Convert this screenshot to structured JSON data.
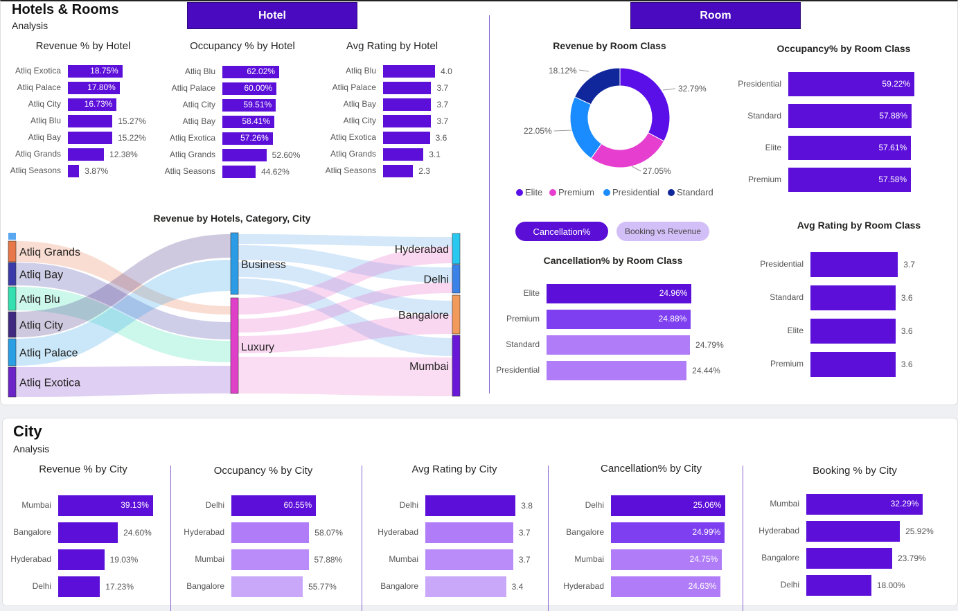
{
  "colors": {
    "accent": "#5b0fd6",
    "tab": "#4a0bc0",
    "bar_dark": "#5c0fd9",
    "bar_mid": "#7e3ff0",
    "bar_light": "#b07cf8",
    "bar_lighter": "#c9a8fa"
  },
  "header": {
    "title": "Hotels & Rooms",
    "subtitle": "Analysis",
    "tab_hotel": "Hotel",
    "tab_room": "Room"
  },
  "city_header": {
    "title": "City",
    "subtitle": "Analysis"
  },
  "buttons": {
    "cancellation": "Cancellation%",
    "booking_vs_revenue": "Booking vs Revenue"
  },
  "chart_data": [
    {
      "id": "rev_hotel",
      "type": "bar",
      "title": "Revenue % by Hotel",
      "categories": [
        "Atliq Exotica",
        "Atliq Palace",
        "Atliq City",
        "Atliq Blu",
        "Atliq Bay",
        "Atliq Grands",
        "Atliq Seasons"
      ],
      "values": [
        18.75,
        17.8,
        16.73,
        15.27,
        15.22,
        12.38,
        3.87
      ],
      "labels": [
        "18.75%",
        "17.80%",
        "16.73%",
        "15.27%",
        "15.22%",
        "12.38%",
        "3.87%"
      ]
    },
    {
      "id": "occ_hotel",
      "type": "bar",
      "title": "Occupancy % by Hotel",
      "categories": [
        "Atliq Blu",
        "Atliq Palace",
        "Atliq City",
        "Atliq Bay",
        "Atliq Exotica",
        "Atliq Grands",
        "Atliq Seasons"
      ],
      "values": [
        62.02,
        60.0,
        59.51,
        58.41,
        57.26,
        52.6,
        44.62
      ],
      "labels": [
        "62.02%",
        "60.00%",
        "59.51%",
        "58.41%",
        "57.26%",
        "52.60%",
        "44.62%"
      ]
    },
    {
      "id": "rat_hotel",
      "type": "bar",
      "title": "Avg Rating by Hotel",
      "categories": [
        "Atliq Blu",
        "Atliq Palace",
        "Atliq Bay",
        "Atliq City",
        "Atliq Exotica",
        "Atliq Grands",
        "Atliq Seasons"
      ],
      "values": [
        4.0,
        3.7,
        3.7,
        3.7,
        3.6,
        3.1,
        2.3
      ],
      "labels": [
        "4.0",
        "3.7",
        "3.7",
        "3.7",
        "3.6",
        "3.1",
        "2.3"
      ]
    },
    {
      "id": "rev_room",
      "type": "pie",
      "title": "Revenue by Room Class",
      "categories": [
        "Elite",
        "Premium",
        "Presidential",
        "Standard"
      ],
      "values": [
        32.79,
        27.05,
        22.05,
        18.12
      ],
      "labels": [
        "32.79%",
        "27.05%",
        "22.05%",
        "18.12%"
      ],
      "colors": [
        "#5b0fe8",
        "#e63ecf",
        "#1a8cff",
        "#0f279a"
      ]
    },
    {
      "id": "occ_room",
      "type": "bar",
      "title": "Occupancy% by Room Class",
      "categories": [
        "Presidential",
        "Standard",
        "Elite",
        "Premium"
      ],
      "values": [
        59.22,
        57.88,
        57.61,
        57.58
      ],
      "labels": [
        "59.22%",
        "57.88%",
        "57.61%",
        "57.58%"
      ]
    },
    {
      "id": "canc_room",
      "type": "bar",
      "title": "Cancellation% by Room Class",
      "categories": [
        "Elite",
        "Premium",
        "Standard",
        "Presidential"
      ],
      "values": [
        24.96,
        24.88,
        24.79,
        24.44
      ],
      "labels": [
        "24.96%",
        "24.88%",
        "24.79%",
        "24.44%"
      ]
    },
    {
      "id": "rat_room",
      "type": "bar",
      "title": "Avg Rating by Room Class",
      "categories": [
        "Presidential",
        "Standard",
        "Elite",
        "Premium"
      ],
      "values": [
        3.7,
        3.6,
        3.6,
        3.6
      ],
      "labels": [
        "3.7",
        "3.6",
        "3.6",
        "3.6"
      ]
    },
    {
      "id": "rev_city",
      "type": "bar",
      "title": "Revenue % by City",
      "categories": [
        "Mumbai",
        "Bangalore",
        "Hyderabad",
        "Delhi"
      ],
      "values": [
        39.13,
        24.6,
        19.03,
        17.23
      ],
      "labels": [
        "39.13%",
        "24.60%",
        "19.03%",
        "17.23%"
      ]
    },
    {
      "id": "occ_city",
      "type": "bar",
      "title": "Occupancy % by City",
      "categories": [
        "Delhi",
        "Hyderabad",
        "Mumbai",
        "Bangalore"
      ],
      "values": [
        60.55,
        58.07,
        57.88,
        55.77
      ],
      "labels": [
        "60.55%",
        "58.07%",
        "57.88%",
        "55.77%"
      ]
    },
    {
      "id": "rat_city",
      "type": "bar",
      "title": "Avg Rating by City",
      "categories": [
        "Delhi",
        "Hyderabad",
        "Mumbai",
        "Bangalore"
      ],
      "values": [
        3.8,
        3.7,
        3.7,
        3.4
      ],
      "labels": [
        "3.8",
        "3.7",
        "3.7",
        "3.4"
      ]
    },
    {
      "id": "canc_city",
      "type": "bar",
      "title": "Cancellation% by City",
      "categories": [
        "Delhi",
        "Bangalore",
        "Mumbai",
        "Hyderabad"
      ],
      "values": [
        25.06,
        24.99,
        24.75,
        24.63
      ],
      "labels": [
        "25.06%",
        "24.99%",
        "24.75%",
        "24.63%"
      ]
    },
    {
      "id": "book_city",
      "type": "bar",
      "title": "Booking % by City",
      "categories": [
        "Mumbai",
        "Hyderabad",
        "Bangalore",
        "Delhi"
      ],
      "values": [
        32.29,
        25.92,
        23.79,
        18.0
      ],
      "labels": [
        "32.29%",
        "25.92%",
        "23.79%",
        "18.00%"
      ]
    },
    {
      "id": "sankey",
      "type": "sankey",
      "title": "Revenue by Hotels, Category, City",
      "sources": [
        "Atliq Grands",
        "Atliq Bay",
        "Atliq Blu",
        "Atliq City",
        "Atliq Palace",
        "Atliq Exotica"
      ],
      "categories": [
        "Business",
        "Luxury"
      ],
      "cities": [
        "Hyderabad",
        "Delhi",
        "Bangalore",
        "Mumbai"
      ]
    }
  ]
}
